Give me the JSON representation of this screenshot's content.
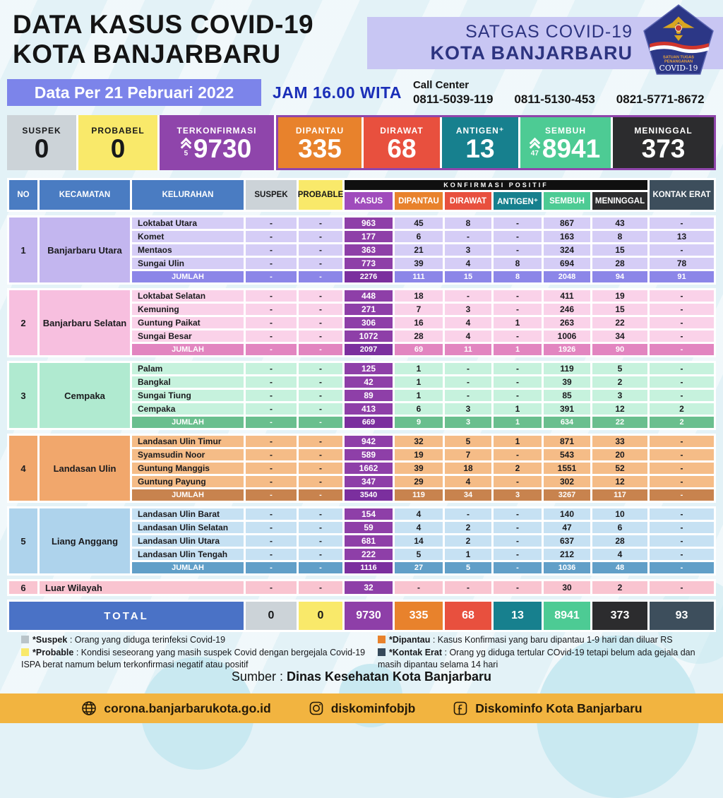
{
  "header": {
    "title_line1": "DATA KASUS COVID-19",
    "title_line2": "KOTA BANJARBARU",
    "satgas_line1": "SATGAS COVID-19",
    "satgas_line2": "KOTA BANJARBARU",
    "logo": {
      "line1": "SATUAN TUGAS",
      "line2": "PENANGANAN",
      "line3": "COVID-19"
    }
  },
  "infobar": {
    "date_label": "Data Per 21 Pebruari 2022",
    "time_label": "JAM 16.00 WITA",
    "call_center_label": "Call Center",
    "call_center_numbers": [
      "0811-5039-119",
      "0811-5130-453",
      "0821-5771-8672"
    ]
  },
  "summary": {
    "group_border_color": "#8f45ab",
    "cards": [
      {
        "label": "SUSPEK",
        "value": "0",
        "bg": "#ccd3d8",
        "fg": "#17181a",
        "grouped": false
      },
      {
        "label": "PROBABEL",
        "value": "0",
        "bg": "#f9e96a",
        "fg": "#17181a",
        "grouped": false
      },
      {
        "label": "TERKONFIRMASI",
        "value": "9730",
        "delta": "5",
        "bg": "#8f45ab",
        "fg": "#ffffff",
        "grouped": false
      },
      {
        "label": "DIPANTAU",
        "value": "335",
        "bg": "#e8822c",
        "fg": "#ffffff",
        "grouped": true
      },
      {
        "label": "DIRAWAT",
        "value": "68",
        "bg": "#e8503e",
        "fg": "#ffffff",
        "grouped": true
      },
      {
        "label": "ANTIGEN⁺",
        "value": "13",
        "bg": "#17808e",
        "fg": "#ffffff",
        "grouped": true
      },
      {
        "label": "SEMBUH",
        "value": "8941",
        "delta": "47",
        "bg": "#4dcb94",
        "fg": "#ffffff",
        "grouped": true
      },
      {
        "label": "MENINGGAL",
        "value": "373",
        "bg": "#2c2c2e",
        "fg": "#ffffff",
        "grouped": true
      }
    ]
  },
  "table": {
    "group_header": {
      "label": "KONFIRMASI POSITIF",
      "bg": "#101010",
      "fg": "#ffffff"
    },
    "columns": [
      {
        "label": "NO",
        "bg": "#4a7cc2",
        "fg": "#ffffff"
      },
      {
        "label": "KECAMATAN",
        "bg": "#4a7cc2",
        "fg": "#ffffff"
      },
      {
        "label": "KELURAHAN",
        "bg": "#4a7cc2",
        "fg": "#ffffff"
      },
      {
        "label": "SUSPEK",
        "bg": "#ccd3d8",
        "fg": "#17181a"
      },
      {
        "label": "PROBABLE",
        "bg": "#f9e96a",
        "fg": "#17181a"
      },
      {
        "label": "KASUS",
        "bg": "#a04cbc",
        "fg": "#ffffff"
      },
      {
        "label": "DIPANTAU",
        "bg": "#e8822c",
        "fg": "#ffffff"
      },
      {
        "label": "DIRAWAT",
        "bg": "#e8503e",
        "fg": "#ffffff"
      },
      {
        "label": "ANTIGEN⁺",
        "bg": "#17808e",
        "fg": "#ffffff"
      },
      {
        "label": "SEMBUH",
        "bg": "#4dcb94",
        "fg": "#ffffff"
      },
      {
        "label": "MENINGGAL",
        "bg": "#2c2c2e",
        "fg": "#ffffff"
      },
      {
        "label": "KONTAK ERAT",
        "bg": "#3d4e5c",
        "fg": "#ffffff"
      }
    ],
    "kasus_colors": {
      "cell": "#8e3fa8",
      "jumlah": "#7b2f9e"
    },
    "jumlah_label": "JUMLAH",
    "sections": [
      {
        "no": "1",
        "kecamatan": "Banjarbaru Utara",
        "theme": {
          "base": "#c3b6ef",
          "cell": "#d5cdf6",
          "jumlah": "#8c86e8"
        },
        "rows": [
          {
            "kelurahan": "Loktabat Utara",
            "values": [
              "-",
              "-",
              "963",
              "45",
              "8",
              "-",
              "867",
              "43",
              "-"
            ]
          },
          {
            "kelurahan": "Komet",
            "values": [
              "-",
              "-",
              "177",
              "6",
              "-",
              "-",
              "163",
              "8",
              "13"
            ]
          },
          {
            "kelurahan": "Mentaos",
            "values": [
              "-",
              "-",
              "363",
              "21",
              "3",
              "-",
              "324",
              "15",
              "-"
            ]
          },
          {
            "kelurahan": "Sungai Ulin",
            "values": [
              "-",
              "-",
              "773",
              "39",
              "4",
              "8",
              "694",
              "28",
              "78"
            ]
          }
        ],
        "jumlah_values": [
          "-",
          "-",
          "2276",
          "111",
          "15",
          "8",
          "2048",
          "94",
          "91"
        ]
      },
      {
        "no": "2",
        "kecamatan": "Banjarbaru Selatan",
        "theme": {
          "base": "#f7bfdf",
          "cell": "#fad2e9",
          "jumlah": "#e285c0"
        },
        "rows": [
          {
            "kelurahan": "Loktabat Selatan",
            "values": [
              "-",
              "-",
              "448",
              "18",
              "-",
              "-",
              "411",
              "19",
              "-"
            ]
          },
          {
            "kelurahan": "Kemuning",
            "values": [
              "-",
              "-",
              "271",
              "7",
              "3",
              "-",
              "246",
              "15",
              "-"
            ]
          },
          {
            "kelurahan": "Guntung Paikat",
            "values": [
              "-",
              "-",
              "306",
              "16",
              "4",
              "1",
              "263",
              "22",
              "-"
            ]
          },
          {
            "kelurahan": "Sungai Besar",
            "values": [
              "-",
              "-",
              "1072",
              "28",
              "4",
              "-",
              "1006",
              "34",
              "-"
            ]
          }
        ],
        "jumlah_values": [
          "-",
          "-",
          "2097",
          "69",
          "11",
          "1",
          "1926",
          "90",
          "-"
        ]
      },
      {
        "no": "3",
        "kecamatan": "Cempaka",
        "theme": {
          "base": "#b0ead0",
          "cell": "#c6f2dd",
          "jumlah": "#6abf8e"
        },
        "rows": [
          {
            "kelurahan": "Palam",
            "values": [
              "-",
              "-",
              "125",
              "1",
              "-",
              "-",
              "119",
              "5",
              "-"
            ]
          },
          {
            "kelurahan": "Bangkal",
            "values": [
              "-",
              "-",
              "42",
              "1",
              "-",
              "-",
              "39",
              "2",
              "-"
            ]
          },
          {
            "kelurahan": "Sungai Tiung",
            "values": [
              "-",
              "-",
              "89",
              "1",
              "-",
              "-",
              "85",
              "3",
              "-"
            ]
          },
          {
            "kelurahan": "Cempaka",
            "values": [
              "-",
              "-",
              "413",
              "6",
              "3",
              "1",
              "391",
              "12",
              "2"
            ]
          }
        ],
        "jumlah_values": [
          "-",
          "-",
          "669",
          "9",
          "3",
          "1",
          "634",
          "22",
          "2"
        ]
      },
      {
        "no": "4",
        "kecamatan": "Landasan Ulin",
        "theme": {
          "base": "#f1a76c",
          "cell": "#f5bc87",
          "jumlah": "#c8834e"
        },
        "rows": [
          {
            "kelurahan": "Landasan Ulin Timur",
            "values": [
              "-",
              "-",
              "942",
              "32",
              "5",
              "1",
              "871",
              "33",
              "-"
            ]
          },
          {
            "kelurahan": "Syamsudin Noor",
            "values": [
              "-",
              "-",
              "589",
              "19",
              "7",
              "-",
              "543",
              "20",
              "-"
            ]
          },
          {
            "kelurahan": "Guntung Manggis",
            "values": [
              "-",
              "-",
              "1662",
              "39",
              "18",
              "2",
              "1551",
              "52",
              "-"
            ]
          },
          {
            "kelurahan": "Guntung Payung",
            "values": [
              "-",
              "-",
              "347",
              "29",
              "4",
              "-",
              "302",
              "12",
              "-"
            ]
          }
        ],
        "jumlah_values": [
          "-",
          "-",
          "3540",
          "119",
          "34",
          "3",
          "3267",
          "117",
          "-"
        ]
      },
      {
        "no": "5",
        "kecamatan": "Liang Anggang",
        "theme": {
          "base": "#aed3ec",
          "cell": "#c6e1f3",
          "jumlah": "#619fc8"
        },
        "rows": [
          {
            "kelurahan": "Landasan Ulin Barat",
            "values": [
              "-",
              "-",
              "154",
              "4",
              "-",
              "-",
              "140",
              "10",
              "-"
            ]
          },
          {
            "kelurahan": "Landasan Ulin Selatan",
            "values": [
              "-",
              "-",
              "59",
              "4",
              "2",
              "-",
              "47",
              "6",
              "-"
            ]
          },
          {
            "kelurahan": "Landasan Ulin Utara",
            "values": [
              "-",
              "-",
              "681",
              "14",
              "2",
              "-",
              "637",
              "28",
              "-"
            ]
          },
          {
            "kelurahan": "Landasan Ulin Tengah",
            "values": [
              "-",
              "-",
              "222",
              "5",
              "1",
              "-",
              "212",
              "4",
              "-"
            ]
          }
        ],
        "jumlah_values": [
          "-",
          "-",
          "1116",
          "27",
          "5",
          "-",
          "1036",
          "48",
          "-"
        ]
      }
    ],
    "outer_row": {
      "no": "6",
      "name": "Luar Wilayah",
      "theme": {
        "cell": "#f9c4d0"
      },
      "values": [
        "-",
        "-",
        "32",
        "-",
        "-",
        "-",
        "30",
        "2",
        "-"
      ]
    },
    "total_row": {
      "label": "TOTAL",
      "label_bg": "#4a72c6",
      "cells": [
        {
          "v": "0",
          "bg": "#ccd3d8",
          "fg": "#17181a"
        },
        {
          "v": "0",
          "bg": "#f9e96a",
          "fg": "#17181a"
        },
        {
          "v": "9730",
          "bg": "#8e3fa8",
          "fg": "#ffffff"
        },
        {
          "v": "335",
          "bg": "#e8822c",
          "fg": "#ffffff"
        },
        {
          "v": "68",
          "bg": "#e8503e",
          "fg": "#ffffff"
        },
        {
          "v": "13",
          "bg": "#17808e",
          "fg": "#ffffff"
        },
        {
          "v": "8941",
          "bg": "#4dcb94",
          "fg": "#ffffff"
        },
        {
          "v": "373",
          "bg": "#2c2c2e",
          "fg": "#ffffff"
        },
        {
          "v": "93",
          "bg": "#3d4e5c",
          "fg": "#ffffff"
        }
      ]
    }
  },
  "legend": {
    "left": [
      {
        "swatch": "#b9c4c9",
        "term": "*Suspek",
        "text": ": Orang yang diduga terinfeksi Covid-19"
      },
      {
        "swatch": "#f9e96a",
        "term": "*Probable",
        "text": ": Kondisi seseorang yang masih suspek Covid dengan bergejala Covid-19 ISPA berat namum belum terkonfirmasi negatif atau positif"
      }
    ],
    "right": [
      {
        "swatch": "#e8822c",
        "term": "*Dipantau",
        "text": ": Kasus Konfirmasi yang baru dipantau 1-9 hari dan diluar RS"
      },
      {
        "swatch": "#35495a",
        "term": "*Kontak Erat",
        "text": ": Orang yg diduga tertular COvid-19 tetapi belum ada gejala dan masih dipantau selama 14 hari"
      }
    ]
  },
  "source": {
    "label": "Sumber :",
    "value": "Dinas Kesehatan Kota Banjarbaru"
  },
  "footer": {
    "website": "corona.banjarbarukota.go.id",
    "instagram": "diskominfobjb",
    "facebook": "Diskominfo Kota Banjarbaru"
  }
}
